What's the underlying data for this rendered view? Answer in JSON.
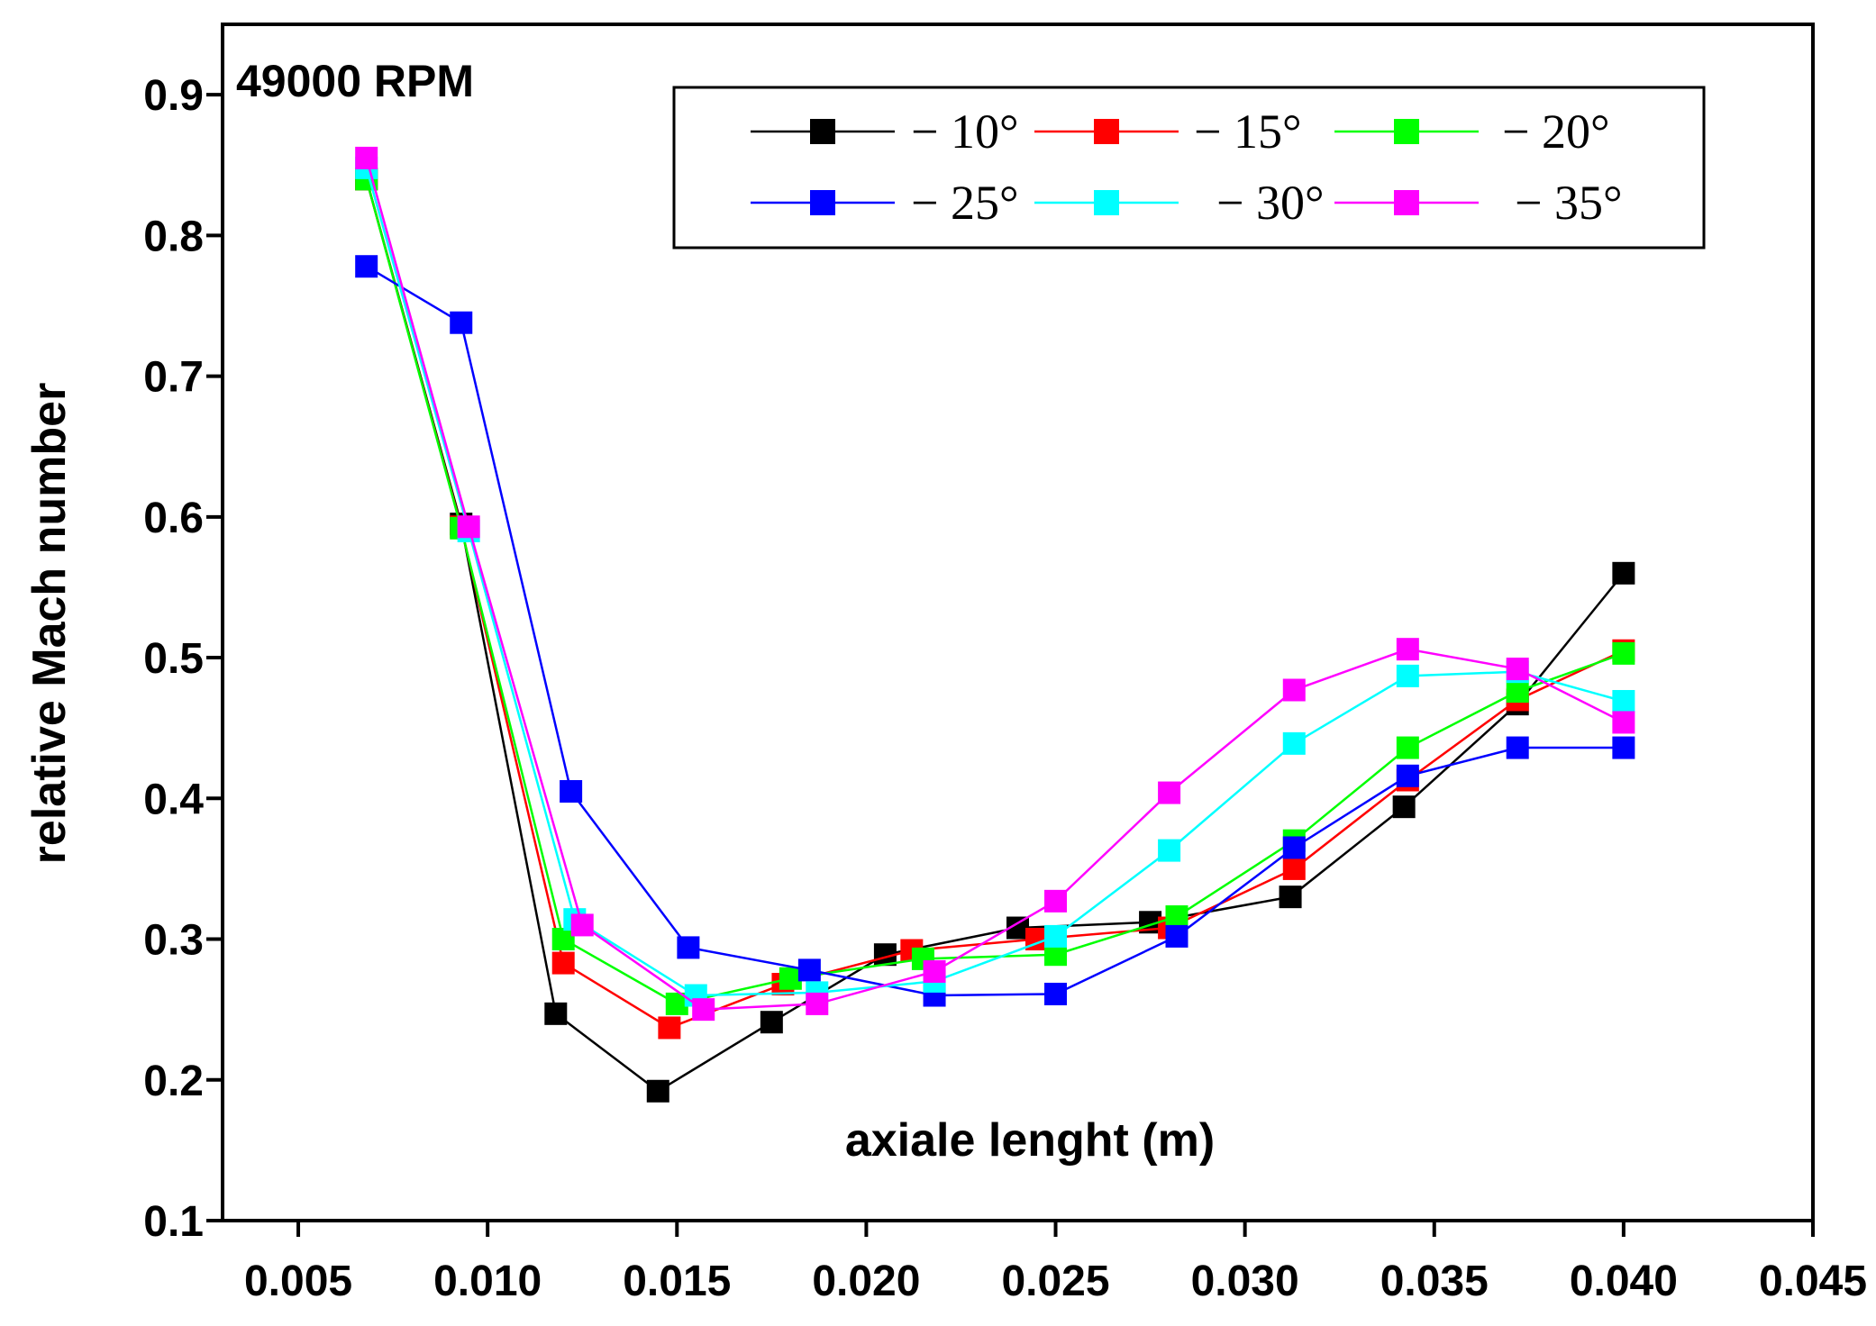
{
  "chart_data": {
    "type": "line",
    "annotation": "49000 RPM",
    "xlabel": "axiale lenght (m)",
    "ylabel": "relative Mach number",
    "xlim": [
      0.003,
      0.045
    ],
    "ylim": [
      0.1,
      0.95
    ],
    "xticks": [
      {
        "value": 0.005,
        "label": "0.005"
      },
      {
        "value": 0.01,
        "label": "0.010"
      },
      {
        "value": 0.015,
        "label": "0.015"
      },
      {
        "value": 0.02,
        "label": "0.020"
      },
      {
        "value": 0.025,
        "label": "0.025"
      },
      {
        "value": 0.03,
        "label": "0.030"
      },
      {
        "value": 0.035,
        "label": "0.035"
      },
      {
        "value": 0.04,
        "label": "0.040"
      },
      {
        "value": 0.045,
        "label": "0.045"
      }
    ],
    "yticks": [
      {
        "value": 0.1,
        "label": "0.1"
      },
      {
        "value": 0.2,
        "label": "0.2"
      },
      {
        "value": 0.3,
        "label": "0.3"
      },
      {
        "value": 0.4,
        "label": "0.4"
      },
      {
        "value": 0.5,
        "label": "0.5"
      },
      {
        "value": 0.6,
        "label": "0.6"
      },
      {
        "value": 0.7,
        "label": "0.7"
      },
      {
        "value": 0.8,
        "label": "0.8"
      },
      {
        "value": 0.9,
        "label": "0.9"
      }
    ],
    "legend_position": "top-right",
    "grid": false,
    "series": [
      {
        "name": "− 10°",
        "color": "#000000",
        "x": [
          0.0068,
          0.0093,
          0.0118,
          0.0145,
          0.0175,
          0.0205,
          0.024,
          0.0275,
          0.0312,
          0.0342,
          0.0372,
          0.04
        ],
        "y": [
          0.84,
          0.595,
          0.247,
          0.192,
          0.241,
          0.289,
          0.308,
          0.312,
          0.33,
          0.394,
          0.467,
          0.56
        ]
      },
      {
        "name": "− 15°",
        "color": "#ff0000",
        "x": [
          0.0068,
          0.0093,
          0.012,
          0.0148,
          0.0178,
          0.0212,
          0.0245,
          0.028,
          0.0313,
          0.0343,
          0.0372,
          0.04
        ],
        "y": [
          0.84,
          0.593,
          0.283,
          0.237,
          0.268,
          0.292,
          0.3,
          0.308,
          0.35,
          0.413,
          0.47,
          0.505
        ]
      },
      {
        "name": "− 20°",
        "color": "#00ff00",
        "x": [
          0.0068,
          0.0093,
          0.012,
          0.015,
          0.018,
          0.0215,
          0.025,
          0.0282,
          0.0313,
          0.0343,
          0.0372,
          0.04
        ],
        "y": [
          0.84,
          0.592,
          0.3,
          0.254,
          0.272,
          0.286,
          0.289,
          0.316,
          0.37,
          0.436,
          0.476,
          0.503
        ]
      },
      {
        "name": "− 25°",
        "color": "#0000ff",
        "x": [
          0.0068,
          0.0093,
          0.0122,
          0.0153,
          0.0185,
          0.0218,
          0.025,
          0.0282,
          0.0313,
          0.0343,
          0.0372,
          0.04
        ],
        "y": [
          0.778,
          0.738,
          0.405,
          0.294,
          0.278,
          0.26,
          0.261,
          0.302,
          0.365,
          0.416,
          0.436,
          0.436
        ]
      },
      {
        "name": "− 30°",
        "color": "#00ffff",
        "x": [
          0.0068,
          0.0095,
          0.0123,
          0.0155,
          0.0187,
          0.0218,
          0.025,
          0.028,
          0.0313,
          0.0343,
          0.0372,
          0.04
        ],
        "y": [
          0.848,
          0.59,
          0.314,
          0.26,
          0.262,
          0.27,
          0.302,
          0.363,
          0.439,
          0.487,
          0.49,
          0.469
        ]
      },
      {
        "name": "− 35°",
        "color": "#ff00ff",
        "x": [
          0.0068,
          0.0095,
          0.0125,
          0.0157,
          0.0187,
          0.0218,
          0.025,
          0.028,
          0.0313,
          0.0343,
          0.0372,
          0.04
        ],
        "y": [
          0.855,
          0.593,
          0.31,
          0.25,
          0.254,
          0.277,
          0.327,
          0.404,
          0.477,
          0.506,
          0.492,
          0.454
        ]
      }
    ]
  }
}
